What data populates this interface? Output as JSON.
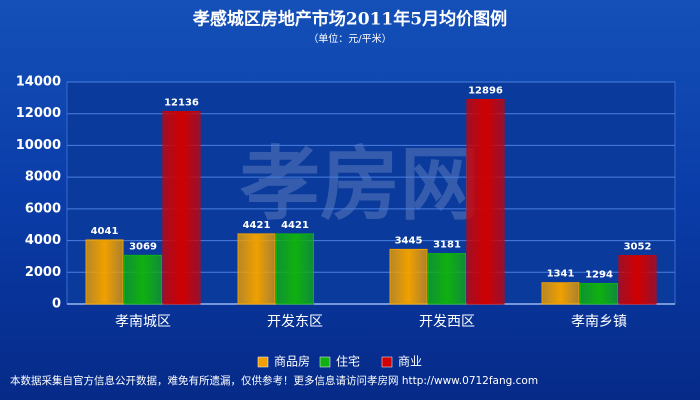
{
  "chart_data": {
    "type": "bar",
    "title": "孝感城区房地产市场2011年5月均价图例",
    "subtitle": "（单位：元/平米）",
    "watermark": "孝房网",
    "categories": [
      "孝南城区",
      "开发东区",
      "开发西区",
      "孝南乡镇"
    ],
    "series": [
      {
        "name": "商品房",
        "color": "#f0a000",
        "values": [
          4041,
          4421,
          3445,
          1341
        ]
      },
      {
        "name": "住宅",
        "color": "#10b010",
        "values": [
          3069,
          4421,
          3181,
          1294
        ]
      },
      {
        "name": "商业",
        "color": "#d00000",
        "values": [
          12136,
          null,
          12896,
          3052
        ]
      }
    ],
    "ylim": [
      0,
      14000
    ],
    "yticks": [
      0,
      2000,
      4000,
      6000,
      8000,
      10000,
      12000,
      14000
    ],
    "grid": true,
    "legend": "bottom",
    "footer": "本数据采集自官方信息公开数据，难免有所遗漏，仅供参考！更多信息请访问孝房网 http://www.0712fang.com"
  }
}
